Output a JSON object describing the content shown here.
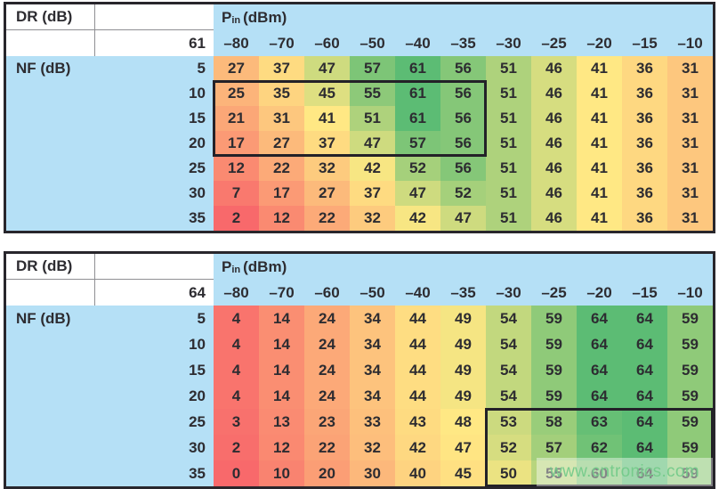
{
  "watermark": "www.cntronics.com",
  "palette": {
    "header_blue": "#B5E0F6",
    "outer_border": "#28262C",
    "grid_gray": "#8F8F93",
    "cell_text": "#2D2C31",
    "highlight_border": "#232128",
    "watermark_text": "#74CA8A",
    "scale_min_color": "#F8696B",
    "scale_mid_color": "#FFE884",
    "scale_max_color": "#5CBC74"
  },
  "chart_data": [
    {
      "type": "heatmap",
      "dr_label": "DR (dB)",
      "dr_value": "61",
      "nf_label": "NF (dB)",
      "pin_label": {
        "main": "P",
        "sub": "in",
        "unit": "(dBm)"
      },
      "col_axis_name": "Pin (dBm)",
      "row_axis_name": "NF (dB)",
      "col_headers": [
        "–80",
        "–70",
        "–60",
        "–50",
        "–40",
        "–35",
        "–30",
        "–25",
        "–20",
        "–15",
        "–10"
      ],
      "row_headers": [
        "5",
        "10",
        "15",
        "20",
        "25",
        "30",
        "35"
      ],
      "values": [
        [
          27,
          37,
          47,
          57,
          61,
          56,
          51,
          46,
          41,
          36,
          31
        ],
        [
          25,
          35,
          45,
          55,
          61,
          56,
          51,
          46,
          41,
          36,
          31
        ],
        [
          21,
          31,
          41,
          51,
          61,
          56,
          51,
          46,
          41,
          36,
          31
        ],
        [
          17,
          27,
          37,
          47,
          57,
          56,
          51,
          46,
          41,
          36,
          31
        ],
        [
          12,
          22,
          32,
          42,
          52,
          56,
          51,
          46,
          41,
          36,
          31
        ],
        [
          7,
          17,
          27,
          37,
          47,
          52,
          51,
          46,
          41,
          36,
          31
        ],
        [
          2,
          12,
          22,
          32,
          42,
          47,
          51,
          46,
          41,
          36,
          31
        ]
      ],
      "color_scale": {
        "min_value": 2,
        "mid_value": 41,
        "max_value": 61
      },
      "highlight_box": {
        "row_start": 1,
        "row_end": 3,
        "col_start": 0,
        "col_end": 5
      }
    },
    {
      "type": "heatmap",
      "dr_label": "DR (dB)",
      "dr_value": "64",
      "nf_label": "NF (dB)",
      "pin_label": {
        "main": "P",
        "sub": "in",
        "unit": "(dBm)"
      },
      "col_axis_name": "Pin (dBm)",
      "row_axis_name": "NF (dB)",
      "col_headers": [
        "–80",
        "–70",
        "–60",
        "–50",
        "–40",
        "–35",
        "–30",
        "–25",
        "–20",
        "–15",
        "–10"
      ],
      "row_headers": [
        "5",
        "10",
        "15",
        "20",
        "25",
        "30",
        "35"
      ],
      "values": [
        [
          4,
          14,
          24,
          34,
          44,
          49,
          54,
          59,
          64,
          64,
          59
        ],
        [
          4,
          14,
          24,
          34,
          44,
          49,
          54,
          59,
          64,
          64,
          59
        ],
        [
          4,
          14,
          24,
          34,
          44,
          49,
          54,
          59,
          64,
          64,
          59
        ],
        [
          4,
          14,
          24,
          34,
          44,
          49,
          54,
          59,
          64,
          64,
          59
        ],
        [
          3,
          13,
          23,
          33,
          43,
          48,
          53,
          58,
          63,
          64,
          59
        ],
        [
          2,
          12,
          22,
          32,
          42,
          47,
          52,
          57,
          62,
          64,
          59
        ],
        [
          0,
          10,
          20,
          30,
          40,
          45,
          50,
          55,
          60,
          64,
          59
        ]
      ],
      "color_scale": {
        "min_value": 0,
        "mid_value": 48,
        "max_value": 64
      },
      "highlight_box": {
        "row_start": 4,
        "row_end": 6,
        "col_start": 6,
        "col_end": 10
      }
    }
  ]
}
